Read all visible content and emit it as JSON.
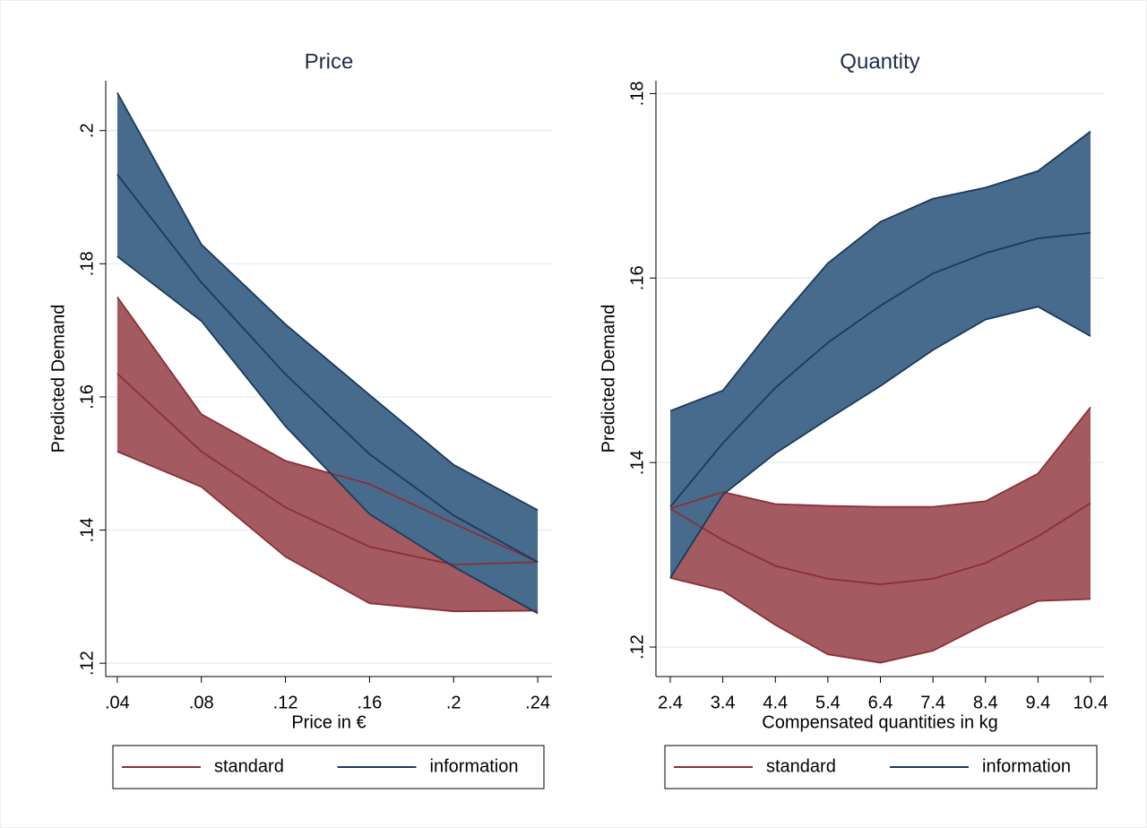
{
  "chart_data": [
    {
      "type": "band-line",
      "title": "Price",
      "xlabel": "Price in €",
      "ylabel": "Predicted Demand",
      "x": [
        0.04,
        0.08,
        0.12,
        0.16,
        0.2,
        0.24
      ],
      "xlim": [
        0.0345,
        0.2468
      ],
      "xticks": [
        {
          "value": 0.04,
          "label": ".04"
        },
        {
          "value": 0.08,
          "label": ".08"
        },
        {
          "value": 0.12,
          "label": ".12"
        },
        {
          "value": 0.16,
          "label": ".16"
        },
        {
          "value": 0.2,
          "label": ".2"
        },
        {
          "value": 0.24,
          "label": ".24"
        }
      ],
      "ylim": [
        0.118,
        0.2075
      ],
      "yticks": [
        {
          "value": 0.12,
          "label": ".12"
        },
        {
          "value": 0.14,
          "label": ".14"
        },
        {
          "value": 0.16,
          "label": ".16"
        },
        {
          "value": 0.18,
          "label": ".18"
        },
        {
          "value": 0.2,
          "label": ".2"
        }
      ],
      "grid": true,
      "legend": "bottom",
      "series": [
        {
          "name": "standard",
          "color": "#8b3036",
          "fill": "#a35a60",
          "values": [
            0.1635,
            0.1518,
            0.1434,
            0.1375,
            0.1348,
            0.1352
          ],
          "upper": [
            0.175,
            0.1574,
            0.1504,
            0.1469,
            0.141,
            0.1352
          ],
          "lower": [
            0.1518,
            0.1465,
            0.136,
            0.129,
            0.1278,
            0.1279
          ]
        },
        {
          "name": "information",
          "color": "#1a3a5c",
          "fill": "#476b8d",
          "values": [
            0.1934,
            0.1772,
            0.1634,
            0.1514,
            0.1422,
            0.1352
          ],
          "upper": [
            0.2057,
            0.1829,
            0.1709,
            0.1603,
            0.1498,
            0.143
          ],
          "lower": [
            0.1811,
            0.1714,
            0.1556,
            0.1424,
            0.1345,
            0.1275
          ]
        }
      ]
    },
    {
      "type": "band-line",
      "title": "Quantity",
      "xlabel": "Compensated quantities in kg",
      "ylabel": "Predicted Demand",
      "x": [
        2.4,
        3.4,
        4.4,
        5.4,
        6.4,
        7.4,
        8.4,
        9.4,
        10.4
      ],
      "xlim": [
        2.127,
        10.656
      ],
      "xticks": [
        2.4,
        3.4,
        4.4,
        5.4,
        6.4,
        7.4,
        8.4,
        9.4,
        10.4
      ],
      "ylim": [
        0.1168,
        0.1814
      ],
      "yticks": [
        {
          "value": 0.12,
          "label": ".12"
        },
        {
          "value": 0.14,
          "label": ".14"
        },
        {
          "value": 0.16,
          "label": ".16"
        },
        {
          "value": 0.18,
          "label": ".18"
        }
      ],
      "grid": true,
      "legend": "bottom",
      "series": [
        {
          "name": "standard",
          "color": "#8b3036",
          "fill": "#a35a60",
          "values": [
            0.135,
            0.1316,
            0.1288,
            0.1274,
            0.1268,
            0.1274,
            0.1291,
            0.132,
            0.1356
          ],
          "upper": [
            0.135,
            0.1368,
            0.1355,
            0.1353,
            0.1352,
            0.1352,
            0.1358,
            0.1388,
            0.146
          ],
          "lower": [
            0.1275,
            0.1261,
            0.1224,
            0.1192,
            0.1183,
            0.1196,
            0.1225,
            0.125,
            0.1252
          ]
        },
        {
          "name": "information",
          "color": "#1a3a5c",
          "fill": "#476b8d",
          "values": [
            0.1352,
            0.1421,
            0.1481,
            0.153,
            0.157,
            0.1605,
            0.1627,
            0.1643,
            0.1649
          ],
          "upper": [
            0.1456,
            0.1478,
            0.155,
            0.1616,
            0.1661,
            0.1686,
            0.1698,
            0.1716,
            0.1759
          ],
          "lower": [
            0.1275,
            0.1365,
            0.141,
            0.1447,
            0.1483,
            0.1522,
            0.1555,
            0.1569,
            0.1537
          ]
        }
      ]
    }
  ]
}
